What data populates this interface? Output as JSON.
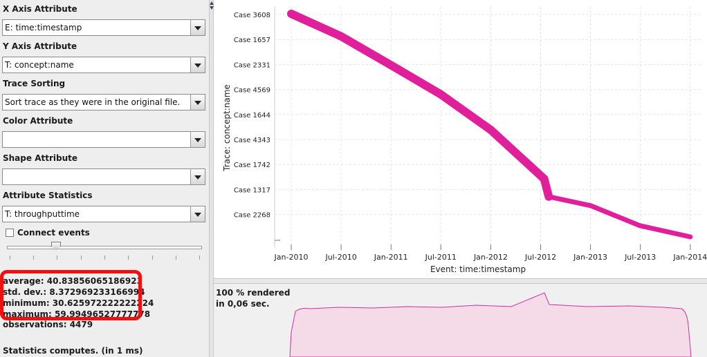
{
  "controls": {
    "x_axis": {
      "label": "X Axis Attribute",
      "value": "E: time:timestamp"
    },
    "y_axis": {
      "label": "Y Axis Attribute",
      "value": "T: concept:name"
    },
    "trace_sorting": {
      "label": "Trace Sorting",
      "value": "Sort trace as they were in the original file."
    },
    "color": {
      "label": "Color Attribute",
      "value": ""
    },
    "shape": {
      "label": "Shape Attribute",
      "value": ""
    },
    "attr_stats": {
      "label": "Attribute Statistics",
      "value": "T: throughputtime"
    },
    "connect_events": {
      "label": "Connect events",
      "checked": false
    },
    "slider": {
      "level": 0.26
    }
  },
  "statistics": {
    "average": "average: 40.83856065186923",
    "std_dev": "std. dev.: 8.372969233166994",
    "minimum": "minimum: 30.625972222222224",
    "maximum": "maximum: 59.99496527777778",
    "observations": "observations: 4479",
    "computes": "Statistics computes. (in 1 ms)"
  },
  "render_status": {
    "line1": "100 % rendered",
    "line2": "in 0,06 sec."
  },
  "colors": {
    "series": "#e0209a",
    "density_fill": "#f5dbe8",
    "density_line": "#d0309a",
    "highlight": "#ee1111"
  },
  "chart_data": {
    "type": "scatter",
    "xlabel": "Event: time:timestamp",
    "ylabel": "Trace: concept:name",
    "x_ticks": [
      "Jan-2010",
      "Jul-2010",
      "Jan-2011",
      "Jul-2011",
      "Jan-2012",
      "Jul-2012",
      "Jan-2013",
      "Jul-2013",
      "Jan-2014"
    ],
    "y_ticks": [
      "Case 3608",
      "Case 1657",
      "Case 2331",
      "Case 4569",
      "Case 1644",
      "Case 4343",
      "Case 1742",
      "Case 1317",
      "Case 2268"
    ],
    "grid": true,
    "series": [
      {
        "points": [
          {
            "x": "2010-01-01",
            "y": 0.0
          },
          {
            "x": "2010-07-01",
            "y": 0.1
          },
          {
            "x": "2011-01-01",
            "y": 0.23
          },
          {
            "x": "2011-07-01",
            "y": 0.36
          },
          {
            "x": "2012-01-01",
            "y": 0.52
          },
          {
            "x": "2012-07-15",
            "y": 0.74
          },
          {
            "x": "2012-08-01",
            "y": 0.82
          },
          {
            "x": "2013-01-01",
            "y": 0.86
          },
          {
            "x": "2013-07-01",
            "y": 0.95
          },
          {
            "x": "2014-01-01",
            "y": 1.0
          }
        ]
      }
    ]
  }
}
